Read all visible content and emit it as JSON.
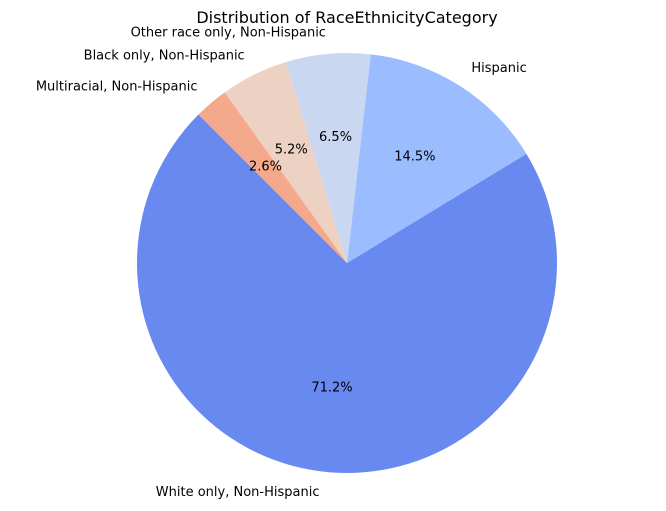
{
  "chart_data": {
    "type": "pie",
    "title": "Distribution of RaceEthnicityCategory",
    "categories": [
      "White only, Non-Hispanic",
      "Hispanic",
      "Other race only, Non-Hispanic",
      "Black only, Non-Hispanic",
      "Multiracial, Non-Hispanic"
    ],
    "values": [
      71.2,
      14.5,
      6.5,
      5.2,
      2.6
    ],
    "value_labels": [
      "71.2%",
      "14.5%",
      "6.5%",
      "5.2%",
      "2.6%"
    ],
    "colors": [
      "#6889ef",
      "#9bbcff",
      "#c9d7f0",
      "#edd1c3",
      "#f5a98c"
    ],
    "start_angle_deg": 135,
    "direction": "counterclockwise"
  }
}
